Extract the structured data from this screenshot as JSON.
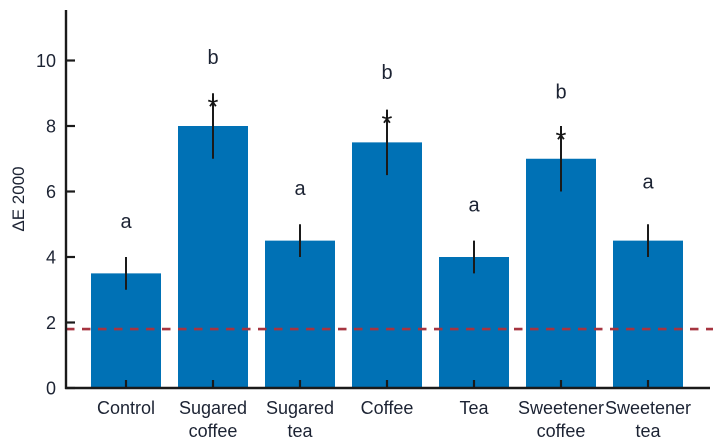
{
  "chart_data": {
    "type": "bar",
    "title": "",
    "xlabel": "",
    "ylabel": "ΔE 2000",
    "ylim": [
      0,
      11.5
    ],
    "yticks": [
      0,
      2,
      4,
      6,
      8,
      10
    ],
    "grid": false,
    "legend": null,
    "bar_color": "#0071B5",
    "axis_color": "#1a1a1a",
    "text_color": "#1c2333",
    "reference_line": {
      "y": 1.8,
      "style": "dashed",
      "color": "#A63440"
    },
    "categories": [
      "Control",
      "Sugared\ncoffee",
      "Sugared\ntea",
      "Coffee",
      "Tea",
      "Sweetener\ncoffee",
      "Sweetener\ntea"
    ],
    "series": [
      {
        "name": "ΔE 2000",
        "values": [
          3.5,
          8.0,
          4.5,
          7.5,
          4.0,
          7.0,
          4.5
        ],
        "errors": [
          0.5,
          1.0,
          0.5,
          1.0,
          0.5,
          1.0,
          0.5
        ]
      }
    ],
    "significance_letters": [
      "a",
      "b",
      "a",
      "b",
      "a",
      "b",
      "a"
    ],
    "letter_y": [
      5.1,
      10.1,
      6.1,
      9.65,
      5.6,
      9.05,
      6.3
    ],
    "asterisks": [
      false,
      true,
      false,
      true,
      false,
      true,
      false
    ],
    "asterisk_y": [
      null,
      8.7,
      null,
      8.2,
      null,
      7.7,
      null
    ]
  }
}
